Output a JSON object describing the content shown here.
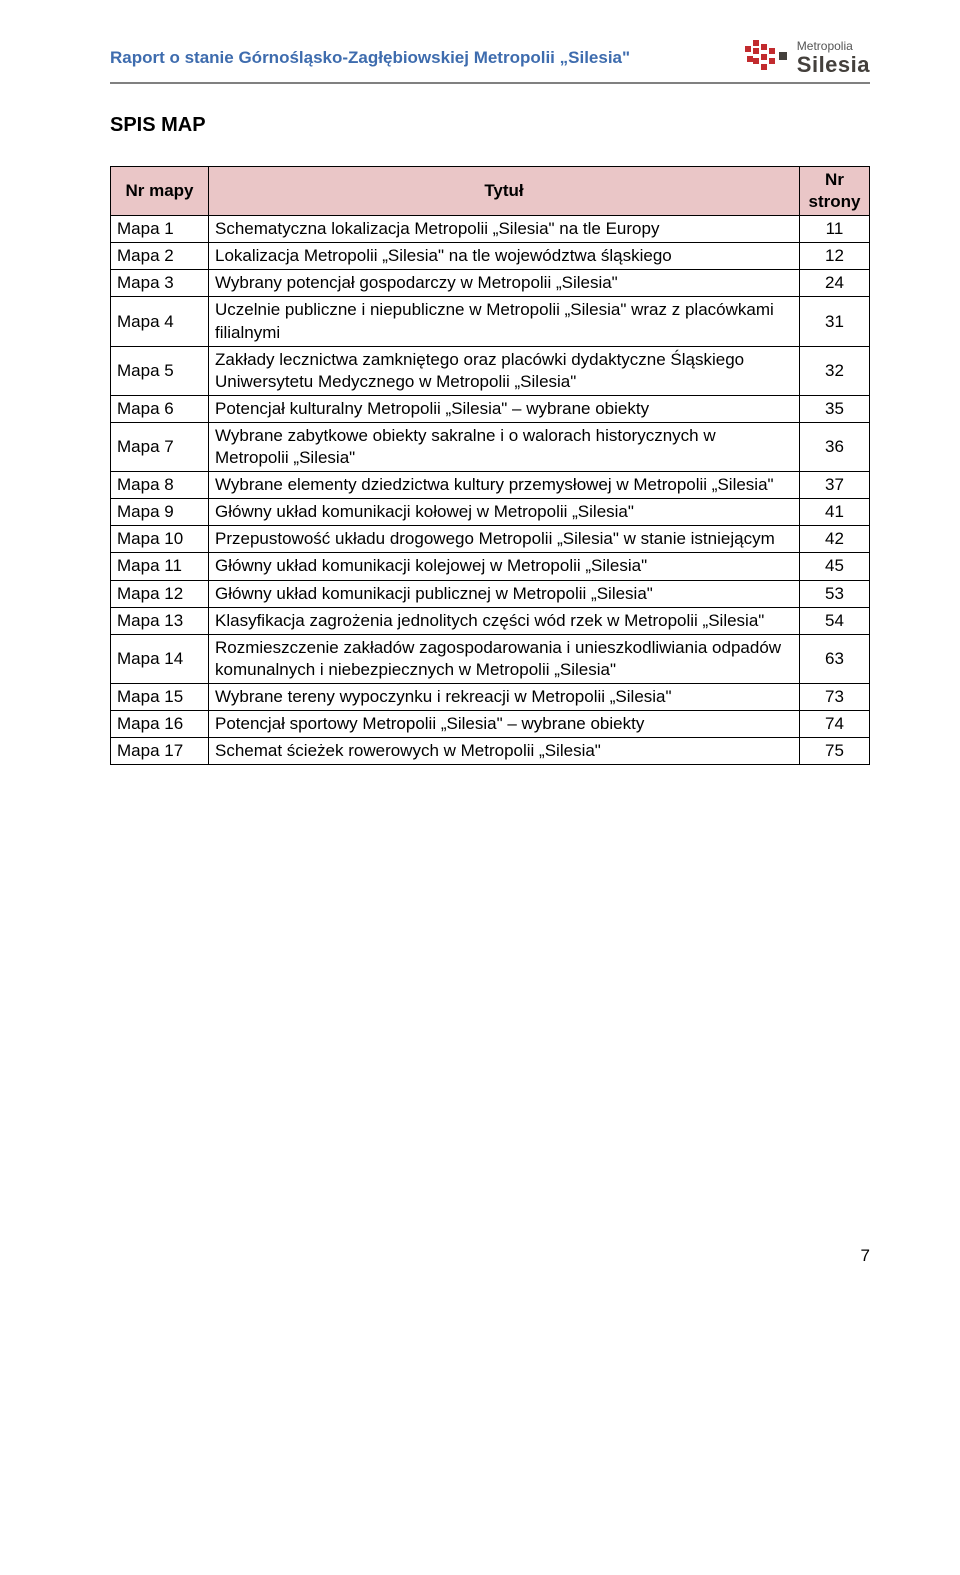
{
  "header": {
    "title": "Raport o stanie Górnośląsko-Zagłębiowskiej Metropolii „Silesia\"",
    "logo_top": "Metropolia",
    "logo_bottom": "Silesia"
  },
  "section_heading": "SPIS MAP",
  "table": {
    "header_bg": "#eac6c7",
    "border_color": "#000000",
    "link_color": "#3e6cae",
    "columns": [
      "Nr mapy",
      "Tytuł",
      "Nr strony"
    ],
    "rows": [
      [
        "Mapa 1",
        "Schematyczna lokalizacja Metropolii „Silesia\" na tle Europy",
        "11"
      ],
      [
        "Mapa 2",
        "Lokalizacja Metropolii „Silesia\" na tle województwa śląskiego",
        "12"
      ],
      [
        "Mapa 3",
        "Wybrany potencjał gospodarczy w Metropolii „Silesia\"",
        "24"
      ],
      [
        "Mapa 4",
        "Uczelnie publiczne i niepubliczne w Metropolii „Silesia\" wraz z placówkami filialnymi",
        "31"
      ],
      [
        "Mapa 5",
        "Zakłady lecznictwa zamkniętego oraz placówki dydaktyczne Śląskiego Uniwersytetu Medycznego w Metropolii „Silesia\"",
        "32"
      ],
      [
        "Mapa 6",
        "Potencjał kulturalny Metropolii „Silesia\" – wybrane obiekty",
        "35"
      ],
      [
        "Mapa 7",
        "Wybrane zabytkowe obiekty sakralne i o walorach historycznych w Metropolii „Silesia\"",
        "36"
      ],
      [
        "Mapa 8",
        "Wybrane elementy dziedzictwa kultury przemysłowej w Metropolii „Silesia\"",
        "37"
      ],
      [
        "Mapa 9",
        "Główny układ komunikacji kołowej w Metropolii „Silesia\"",
        "41"
      ],
      [
        "Mapa 10",
        "Przepustowość układu drogowego Metropolii „Silesia\" w stanie istniejącym",
        "42"
      ],
      [
        "Mapa 11",
        "Główny układ komunikacji kolejowej w Metropolii „Silesia\"",
        "45"
      ],
      [
        "Mapa 12",
        "Główny układ komunikacji publicznej w Metropolii „Silesia\"",
        "53"
      ],
      [
        "Mapa 13",
        "Klasyfikacja zagrożenia jednolitych części wód rzek w Metropolii „Silesia\"",
        "54"
      ],
      [
        "Mapa 14",
        "Rozmieszczenie zakładów zagospodarowania i unieszkodliwiania odpadów komunalnych i niebezpiecznych w Metropolii „Silesia\"",
        "63"
      ],
      [
        "Mapa 15",
        "Wybrane tereny wypoczynku i rekreacji w Metropolii „Silesia\"",
        "73"
      ],
      [
        "Mapa 16",
        "Potencjał sportowy Metropolii „Silesia\" – wybrane obiekty",
        "74"
      ],
      [
        "Mapa 17",
        "Schemat ścieżek rowerowych w Metropolii „Silesia\"",
        "75"
      ]
    ]
  },
  "page_number": "7",
  "logo_colors": {
    "red": "#c22b2e",
    "dark": "#44403c"
  }
}
